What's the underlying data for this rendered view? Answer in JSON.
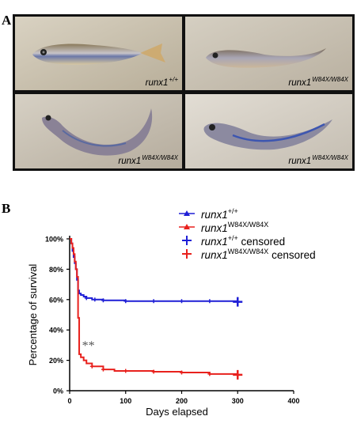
{
  "panels": {
    "a_label": "A",
    "b_label": "B"
  },
  "photos": [
    {
      "genotype_base": "runx1",
      "genotype_sup": "+/+"
    },
    {
      "genotype_base": "runx1",
      "genotype_sup": "W84X/W84X"
    },
    {
      "genotype_base": "runx1",
      "genotype_sup": "W84X/W84X"
    },
    {
      "genotype_base": "runx1",
      "genotype_sup": "W84X/W84X"
    }
  ],
  "legend": [
    {
      "base": "runx1",
      "sup": "+/+",
      "suffix": "",
      "color": "#1f1fd6",
      "marker": "triangle"
    },
    {
      "base": "runx1",
      "sup": "W84X/W84X",
      "suffix": "",
      "color": "#e8211d",
      "marker": "triangle"
    },
    {
      "base": "runx1",
      "sup": "+/+",
      "suffix": " censored",
      "color": "#1f1fd6",
      "marker": "plus"
    },
    {
      "base": "runx1",
      "sup": "W84X/W84X",
      "suffix": " censored",
      "color": "#e8211d",
      "marker": "plus"
    }
  ],
  "chart_data": {
    "type": "line",
    "xlabel": "Days elapsed",
    "ylabel": "Percentage of survival",
    "xlim": [
      0,
      400
    ],
    "ylim": [
      0,
      100
    ],
    "xticks": [
      "0",
      "100",
      "200",
      "300",
      "400"
    ],
    "yticks": [
      "0%",
      "20%",
      "40%",
      "60%",
      "80%",
      "100%"
    ],
    "annotation": "**",
    "series": [
      {
        "name": "runx1+/+",
        "color": "#1f1fd6",
        "x": [
          0,
          3,
          5,
          7,
          9,
          11,
          13,
          15,
          17,
          20,
          25,
          30,
          40,
          60,
          100,
          200,
          300
        ],
        "y": [
          100,
          97,
          92,
          88,
          84,
          80,
          73,
          66,
          64,
          63,
          62,
          61,
          60,
          59.5,
          59,
          59,
          58.5
        ],
        "censored_x": [
          30,
          45,
          60,
          100,
          150,
          200,
          250,
          300
        ]
      },
      {
        "name": "runx1W84X/W84X",
        "color": "#e8211d",
        "x": [
          0,
          3,
          5,
          7,
          9,
          11,
          13,
          15,
          17,
          20,
          25,
          30,
          40,
          60,
          80,
          100,
          150,
          200,
          250,
          300
        ],
        "y": [
          100,
          97,
          94,
          90,
          85,
          80,
          75,
          48,
          24,
          22,
          20,
          18,
          16,
          14,
          13,
          13,
          12.5,
          12,
          11,
          10.5
        ],
        "censored_x": [
          40,
          60,
          100,
          150,
          200,
          250,
          300
        ]
      }
    ]
  }
}
